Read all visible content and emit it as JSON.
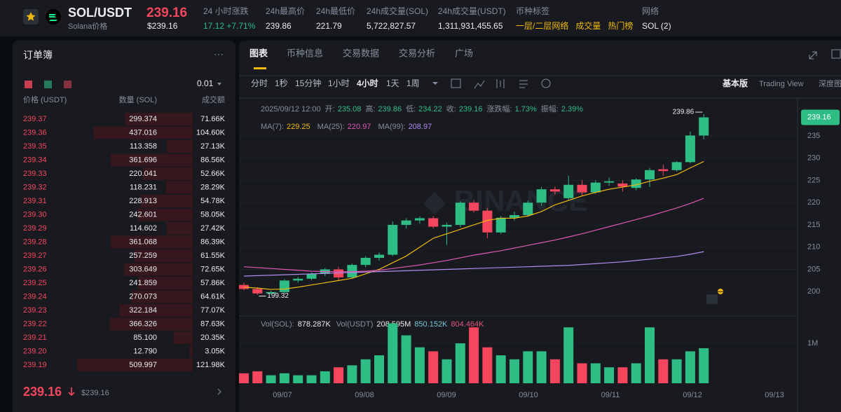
{
  "header": {
    "symbol": "SOL/USDT",
    "subtitle": "Solana价格",
    "price": "239.16",
    "price_usd": "$239.16",
    "stats": [
      {
        "label": "24 小时涨跌",
        "value": "17.12 +7.71%"
      },
      {
        "label": "24h最高价",
        "value": "239.86"
      },
      {
        "label": "24h最低价",
        "value": "221.79"
      },
      {
        "label": "24h成交量(SOL)",
        "value": "5,722,827.57"
      },
      {
        "label": "24h成交量(USDT)",
        "value": "1,311,931,455.65"
      }
    ],
    "tags_label": "币种标签",
    "tags": [
      "一层/二层网络",
      "成交量",
      "热门榜"
    ],
    "network_label": "网络",
    "network": "SOL (2)"
  },
  "orderbook": {
    "title": "订单簿",
    "precision": "0.01",
    "columns": [
      "价格 (USDT)",
      "数量 (SOL)",
      "成交额"
    ],
    "asks": [
      {
        "price": "239.37",
        "qty": "299.374",
        "total": "71.66K"
      },
      {
        "price": "239.36",
        "qty": "437.016",
        "total": "104.60K"
      },
      {
        "price": "239.35",
        "qty": "113.358",
        "total": "27.13K"
      },
      {
        "price": "239.34",
        "qty": "361.696",
        "total": "86.56K"
      },
      {
        "price": "239.33",
        "qty": "220.041",
        "total": "52.66K"
      },
      {
        "price": "239.32",
        "qty": "118.231",
        "total": "28.29K"
      },
      {
        "price": "239.31",
        "qty": "228.913",
        "total": "54.78K"
      },
      {
        "price": "239.30",
        "qty": "242.601",
        "total": "58.05K"
      },
      {
        "price": "239.29",
        "qty": "114.602",
        "total": "27.42K"
      },
      {
        "price": "239.28",
        "qty": "361.068",
        "total": "86.39K"
      },
      {
        "price": "239.27",
        "qty": "257.259",
        "total": "61.55K"
      },
      {
        "price": "239.26",
        "qty": "303.649",
        "total": "72.65K"
      },
      {
        "price": "239.25",
        "qty": "241.859",
        "total": "57.86K"
      },
      {
        "price": "239.24",
        "qty": "270.073",
        "total": "64.61K"
      },
      {
        "price": "239.23",
        "qty": "322.184",
        "total": "77.07K"
      },
      {
        "price": "239.22",
        "qty": "366.326",
        "total": "87.63K"
      },
      {
        "price": "239.21",
        "qty": "85.100",
        "total": "20.35K"
      },
      {
        "price": "239.20",
        "qty": "12.790",
        "total": "3.05K"
      },
      {
        "price": "239.19",
        "qty": "509.997",
        "total": "121.98K"
      }
    ],
    "last_price": "239.16",
    "last_price_usd": "$239.16"
  },
  "tabs": [
    "图表",
    "币种信息",
    "交易数据",
    "交易分析",
    "广场"
  ],
  "intervals": [
    "分时",
    "1秒",
    "15分钟",
    "1小时",
    "4小时",
    "1天",
    "1周"
  ],
  "views": [
    "基本版",
    "Trading View",
    "深度图"
  ],
  "kline": {
    "date": "2025/09/12 12:00",
    "info": [
      {
        "label": "开:",
        "value": "235.08"
      },
      {
        "label": "高:",
        "value": "239.86"
      },
      {
        "label": "低:",
        "value": "234.22"
      },
      {
        "label": "收:",
        "value": "239.16"
      },
      {
        "label": "涨跌幅:",
        "value": "1.73%"
      },
      {
        "label": "振幅:",
        "value": "2.39%"
      }
    ],
    "ma_legend": [
      {
        "label": "MA(7):",
        "value": "229.25"
      },
      {
        "label": "MA(25):",
        "value": "220.97"
      },
      {
        "label": "MA(99):",
        "value": "208.97"
      }
    ],
    "vol_legend": [
      {
        "label": "Vol(SOL):",
        "value": "878.287K"
      },
      {
        "label": "Vol(USDT)",
        "value": "208.595M"
      },
      {
        "label": "",
        "value": "850.152K"
      },
      {
        "label": "",
        "value": "804.464K"
      }
    ],
    "ylim": [
      195,
      242.7
    ],
    "yticks": [
      235,
      230,
      225,
      220,
      215,
      210,
      205,
      200
    ],
    "last_tag": "239.16",
    "high_label": "239.86",
    "low_label": "199.32",
    "candles": [
      {
        "open": 201.5,
        "high": 202,
        "low": 200.3,
        "close": 200.6
      },
      {
        "open": 200.6,
        "high": 201,
        "low": 199.32,
        "close": 199.6
      },
      {
        "open": 199.6,
        "high": 200.2,
        "low": 199.4,
        "close": 199.9
      },
      {
        "open": 199.9,
        "high": 202.8,
        "low": 199.5,
        "close": 202.5
      },
      {
        "open": 202.5,
        "high": 203.3,
        "low": 202,
        "close": 202.9
      },
      {
        "open": 202.9,
        "high": 204.3,
        "low": 202.6,
        "close": 204
      },
      {
        "open": 204,
        "high": 205.3,
        "low": 203.5,
        "close": 205
      },
      {
        "open": 205,
        "high": 205.6,
        "low": 202.5,
        "close": 203.2
      },
      {
        "open": 203.2,
        "high": 206.3,
        "low": 203,
        "close": 206
      },
      {
        "open": 206,
        "high": 208,
        "low": 205.5,
        "close": 207.6
      },
      {
        "open": 207.6,
        "high": 208.8,
        "low": 207,
        "close": 208.3
      },
      {
        "open": 208.3,
        "high": 215.8,
        "low": 208,
        "close": 215
      },
      {
        "open": 215,
        "high": 216.5,
        "low": 214.2,
        "close": 216
      },
      {
        "open": 216,
        "high": 216.9,
        "low": 215.3,
        "close": 216.5
      },
      {
        "open": 216.5,
        "high": 217,
        "low": 214.2,
        "close": 214.6
      },
      {
        "open": 214.6,
        "high": 215.5,
        "low": 210.5,
        "close": 215
      },
      {
        "open": 215,
        "high": 220.3,
        "low": 214.5,
        "close": 220
      },
      {
        "open": 220,
        "high": 220.6,
        "low": 217.8,
        "close": 218.2
      },
      {
        "open": 218.2,
        "high": 218.8,
        "low": 212,
        "close": 213.3
      },
      {
        "open": 213.3,
        "high": 217,
        "low": 213,
        "close": 216.6
      },
      {
        "open": 216.6,
        "high": 218,
        "low": 216,
        "close": 217.2
      },
      {
        "open": 217.2,
        "high": 220.5,
        "low": 216.8,
        "close": 220
      },
      {
        "open": 220,
        "high": 223.5,
        "low": 219.3,
        "close": 223
      },
      {
        "open": 223,
        "high": 223.6,
        "low": 221.8,
        "close": 222.5
      },
      {
        "open": 221,
        "high": 226,
        "low": 220.5,
        "close": 224
      },
      {
        "open": 224,
        "high": 225,
        "low": 221.5,
        "close": 222.3
      },
      {
        "open": 222.3,
        "high": 225,
        "low": 222,
        "close": 224.5
      },
      {
        "open": 224.5,
        "high": 225.6,
        "low": 223.8,
        "close": 224.8
      },
      {
        "open": 224.3,
        "high": 225,
        "low": 222.5,
        "close": 223.6
      },
      {
        "open": 223.3,
        "high": 225.5,
        "low": 222.8,
        "close": 225.2
      },
      {
        "open": 225.2,
        "high": 227.8,
        "low": 223.5,
        "close": 227.3
      },
      {
        "open": 227.5,
        "high": 228.5,
        "low": 226,
        "close": 227.1
      },
      {
        "open": 227.3,
        "high": 229.3,
        "low": 227,
        "close": 229.1
      },
      {
        "open": 229.1,
        "high": 236,
        "low": 228.8,
        "close": 235.08
      },
      {
        "open": 235.08,
        "high": 239.86,
        "low": 234.22,
        "close": 239.16
      }
    ],
    "ma7": [
      201,
      200.8,
      200.5,
      200.6,
      201,
      201.5,
      202,
      202.5,
      203,
      204,
      205,
      206.5,
      208,
      210,
      212,
      213,
      214,
      215,
      216,
      216.5,
      216.5,
      217,
      218,
      219.5,
      220.5,
      221.5,
      222.3,
      223,
      223.5,
      224,
      224.8,
      225.5,
      226.3,
      227.8,
      229.25
    ],
    "ma25": [
      205.6,
      205.4,
      205.2,
      205,
      204.8,
      204.6,
      204.5,
      204.5,
      204.5,
      204.6,
      204.8,
      205.2,
      205.6,
      206,
      206.5,
      207,
      207.6,
      208.2,
      208.7,
      209.2,
      209.8,
      210.4,
      211,
      211.6,
      212.3,
      213,
      213.8,
      214.6,
      215.4,
      216.2,
      217,
      217.9,
      218.8,
      219.8,
      220.97
    ],
    "ma99": [
      203.5,
      203.6,
      203.7,
      203.8,
      203.9,
      204,
      204.1,
      204.2,
      204.3,
      204.4,
      204.5,
      204.6,
      204.7,
      204.8,
      204.9,
      205,
      205.1,
      205.2,
      205.3,
      205.4,
      205.5,
      205.6,
      205.7,
      205.8,
      205.9,
      206.1,
      206.3,
      206.5,
      206.7,
      207,
      207.3,
      207.6,
      207.9,
      208.4,
      208.97
    ],
    "volumes": [
      250000,
      300000,
      200000,
      250000,
      200000,
      200000,
      300000,
      400000,
      450000,
      600000,
      700000,
      1500000,
      1200000,
      900000,
      800000,
      600000,
      1000000,
      1400000,
      900000,
      700000,
      600000,
      800000,
      800000,
      600000,
      1400000,
      500000,
      500000,
      400000,
      400000,
      500000,
      1400000,
      600000,
      600000,
      800000,
      878287
    ],
    "vol_ylim": [
      0,
      1500000
    ],
    "vol_ticks": [
      {
        "value": 1000000,
        "label": "1M"
      }
    ],
    "dates": [
      "09/07",
      "09/08",
      "09/09",
      "09/10",
      "09/11",
      "09/12",
      "09/13"
    ]
  }
}
